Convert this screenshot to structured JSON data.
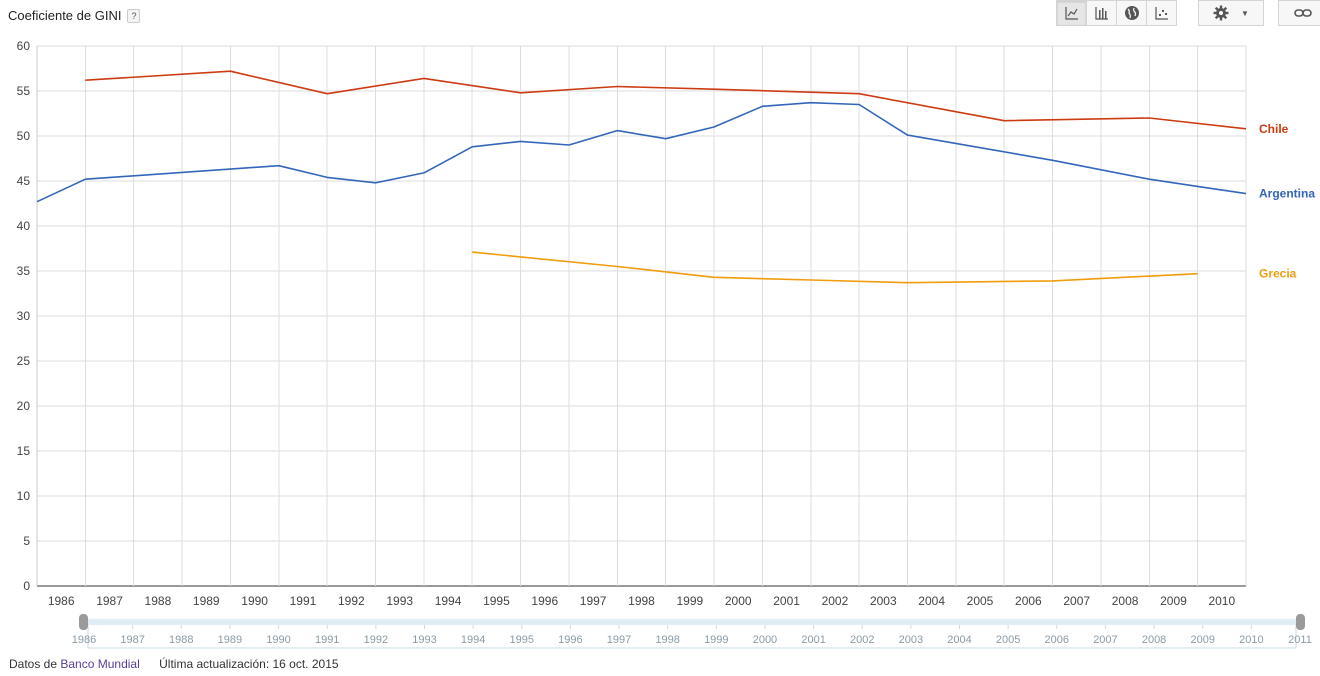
{
  "header": {
    "title": "Coeficiente de GINI",
    "help_label": "?"
  },
  "toolbar": {
    "buttons": [
      {
        "icon": "line-chart-icon",
        "active": true
      },
      {
        "icon": "bar-chart-icon",
        "active": false
      },
      {
        "icon": "globe-icon",
        "active": false
      },
      {
        "icon": "scatter-chart-icon",
        "active": false
      }
    ],
    "settings_icon": "gear-icon",
    "share_icon": "link-icon"
  },
  "chart_data": {
    "type": "line",
    "x": [
      1986,
      1987,
      1988,
      1989,
      1990,
      1991,
      1992,
      1993,
      1994,
      1995,
      1996,
      1997,
      1998,
      1999,
      2000,
      2001,
      2002,
      2003,
      2004,
      2005,
      2006,
      2007,
      2008,
      2009,
      2010
    ],
    "ylim": [
      0,
      60
    ],
    "yticks": [
      0,
      5,
      10,
      15,
      20,
      25,
      30,
      35,
      40,
      45,
      50,
      55,
      60
    ],
    "grid": true,
    "legend": "right, labels at line ends",
    "series": [
      {
        "name": "Chile",
        "color": "#cc3b12",
        "points": [
          [
            1987,
            56.2
          ],
          [
            1990,
            57.2
          ],
          [
            1992,
            54.7
          ],
          [
            1994,
            56.4
          ],
          [
            1996,
            54.8
          ],
          [
            1998,
            55.5
          ],
          [
            2000,
            55.2
          ],
          [
            2003,
            54.7
          ],
          [
            2006,
            51.7
          ],
          [
            2009,
            52.0
          ],
          [
            2011,
            50.8
          ]
        ]
      },
      {
        "name": "Argentina",
        "color": "#3366bb",
        "points": [
          [
            1986,
            42.7
          ],
          [
            1987,
            45.2
          ],
          [
            1991,
            46.7
          ],
          [
            1992,
            45.4
          ],
          [
            1993,
            44.8
          ],
          [
            1994,
            45.9
          ],
          [
            1995,
            48.8
          ],
          [
            1996,
            49.4
          ],
          [
            1997,
            49.0
          ],
          [
            1998,
            50.6
          ],
          [
            1999,
            49.7
          ],
          [
            2000,
            51.0
          ],
          [
            2001,
            53.3
          ],
          [
            2002,
            53.7
          ],
          [
            2003,
            53.5
          ],
          [
            2004,
            50.1
          ],
          [
            2007,
            47.3
          ],
          [
            2009,
            45.2
          ],
          [
            2010,
            44.4
          ],
          [
            2011,
            43.6
          ]
        ]
      },
      {
        "name": "Grecia",
        "color": "#f09c0d",
        "points": [
          [
            1995,
            37.1
          ],
          [
            1998,
            35.5
          ],
          [
            2000,
            34.3
          ],
          [
            2002,
            34.0
          ],
          [
            2004,
            33.7
          ],
          [
            2007,
            33.9
          ],
          [
            2010,
            34.7
          ]
        ]
      }
    ]
  },
  "slider": {
    "labels": [
      "1986",
      "1987",
      "1988",
      "1989",
      "1990",
      "1991",
      "1992",
      "1993",
      "1994",
      "1995",
      "1996",
      "1997",
      "1998",
      "1999",
      "2000",
      "2001",
      "2002",
      "2003",
      "2004",
      "2005",
      "2006",
      "2007",
      "2008",
      "2009",
      "2010",
      "2011"
    ]
  },
  "footer": {
    "data_prefix": "Datos de",
    "data_source": "Banco Mundial",
    "updated": "Última actualización: 16 oct. 2015"
  }
}
